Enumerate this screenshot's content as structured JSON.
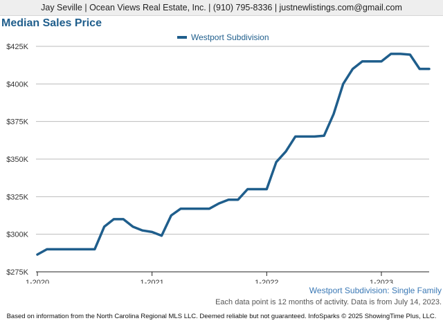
{
  "header": {
    "contact": "Jay Seville | Ocean Views Real Estate, Inc. | (910) 795-8336 | justnewlistings.com@gmail.com"
  },
  "chart_title": "Median Sales Price",
  "subtitle": "Westport Subdivision: Single Family",
  "note": "Each data point is 12 months of activity. Data is from July 14, 2023.",
  "footer": "Based on information from the North Carolina Regional MLS LLC. Deemed reliable but not guaranteed. InfoSparks © 2025 ShowingTime Plus, LLC.",
  "colors": {
    "series": "#1f5e8c",
    "grid": "#bbbbbb",
    "axis": "#222222"
  },
  "chart_data": {
    "type": "line",
    "title": "Median Sales Price",
    "xlabel": "",
    "ylabel": "",
    "legend_position": "top-center",
    "grid": true,
    "ylim": [
      275000,
      425000
    ],
    "yticks": [
      425000,
      400000,
      375000,
      350000,
      325000,
      300000,
      275000
    ],
    "ytick_labels": [
      "$425K",
      "$400K",
      "$375K",
      "$350K",
      "$325K",
      "$300K",
      "$275K"
    ],
    "xlim": [
      "2020-01",
      "2023-06"
    ],
    "xticks": [
      "2020-01",
      "2021-01",
      "2022-01",
      "2023-01"
    ],
    "xtick_labels": [
      "1-2020",
      "1-2021",
      "1-2022",
      "1-2023"
    ],
    "series": [
      {
        "name": "Westport Subdivision",
        "color": "#1f5e8c",
        "x": [
          "2020-01",
          "2020-02",
          "2020-03",
          "2020-04",
          "2020-05",
          "2020-06",
          "2020-07",
          "2020-08",
          "2020-09",
          "2020-10",
          "2020-11",
          "2020-12",
          "2021-01",
          "2021-02",
          "2021-03",
          "2021-04",
          "2021-05",
          "2021-06",
          "2021-07",
          "2021-08",
          "2021-09",
          "2021-10",
          "2021-11",
          "2021-12",
          "2022-01",
          "2022-02",
          "2022-03",
          "2022-04",
          "2022-05",
          "2022-06",
          "2022-07",
          "2022-08",
          "2022-09",
          "2022-10",
          "2022-11",
          "2022-12",
          "2023-01",
          "2023-02",
          "2023-03",
          "2023-04",
          "2023-05",
          "2023-06"
        ],
        "values": [
          286500,
          290000,
          290000,
          290000,
          290000,
          290000,
          290000,
          305000,
          310000,
          310000,
          305000,
          302500,
          301500,
          299000,
          312500,
          317000,
          317000,
          317000,
          317000,
          320500,
          323000,
          323000,
          330000,
          330000,
          330000,
          348000,
          355000,
          365000,
          365000,
          365000,
          365500,
          380000,
          400000,
          410000,
          415000,
          415000,
          415000,
          420000,
          420000,
          419500,
          410000,
          410000
        ]
      }
    ]
  }
}
